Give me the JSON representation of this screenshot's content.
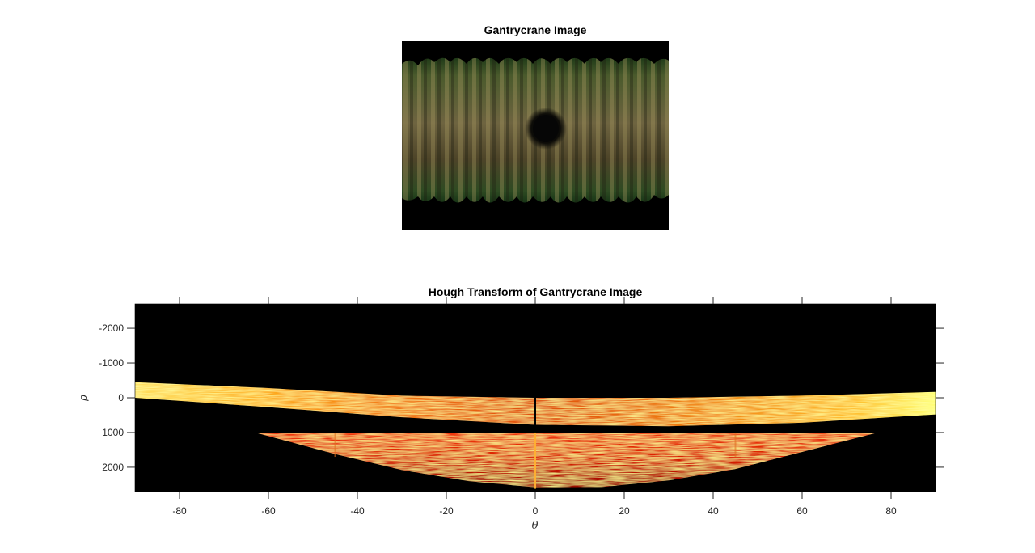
{
  "figure": {
    "image_title": "Gantrycrane Image",
    "hough_title": "Hough Transform of Gantrycrane Image"
  },
  "colors": {
    "background": "#000000",
    "hot_low": "#8a0a00",
    "hot_mid": "#e02a00",
    "hot_high": "#ff9a10",
    "hot_peak": "#ffff80",
    "photo_green": "#2f6a2a",
    "photo_body": "#5a5236"
  },
  "chart_data": {
    "type": "heatmap",
    "title": "Hough Transform of Gantrycrane Image",
    "xlabel": "θ",
    "ylabel": "ρ",
    "xlim": [
      -90,
      90
    ],
    "ylim": [
      -2700,
      2700
    ],
    "y_reversed": true,
    "x_ticks": [
      -80,
      -60,
      -40,
      -20,
      0,
      20,
      40,
      60,
      80
    ],
    "x_tick_labels": [
      "-80",
      "-60",
      "-40",
      "-20",
      "0",
      "20",
      "40",
      "60",
      "80"
    ],
    "y_ticks": [
      -2000,
      -1000,
      0,
      1000,
      2000
    ],
    "y_tick_labels": [
      "-2000",
      "-1000",
      "0",
      "1000",
      "2000"
    ],
    "upper_band": {
      "theta": [
        -90,
        -60,
        -30,
        0,
        30,
        60,
        90
      ],
      "rho_top": [
        -450,
        -280,
        -60,
        0,
        0,
        -60,
        -170
      ],
      "rho_bottom": [
        0,
        270,
        560,
        780,
        820,
        720,
        480
      ]
    },
    "lower_band": {
      "theta": [
        -63,
        -45,
        -30,
        -15,
        0,
        15,
        30,
        45,
        60,
        77
      ],
      "rho_top": [
        1000,
        1000,
        1000,
        1000,
        1000,
        1000,
        1000,
        1000,
        1000,
        1000
      ],
      "rho_bottom": [
        1000,
        1620,
        2080,
        2400,
        2580,
        2570,
        2380,
        2050,
        1560,
        1000
      ]
    },
    "bright_columns_theta": [
      -45,
      0,
      45
    ]
  }
}
